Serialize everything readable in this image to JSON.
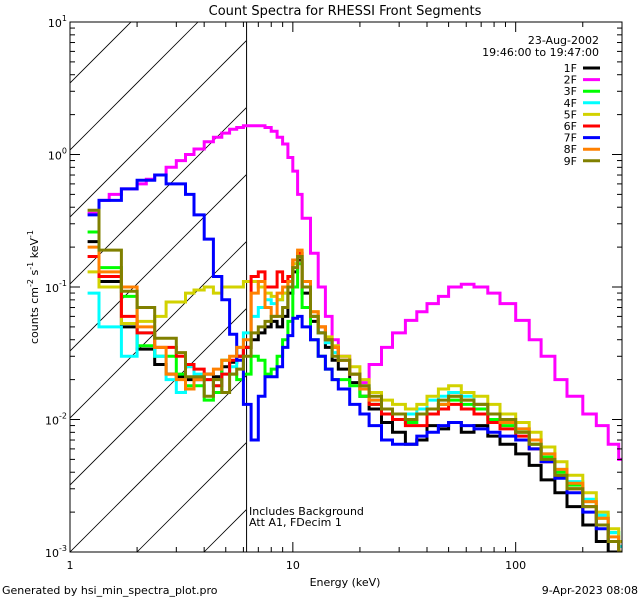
{
  "chart_data": {
    "type": "line",
    "title": "Count Spectra for RHESSI Front Segments",
    "xlabel": "Energy (keV)",
    "ylabel": {
      "base": "counts cm",
      "e1": "-2",
      "mid1": " s",
      "e2": "-1",
      "mid2": " keV",
      "e3": "-1"
    },
    "xscale": "log",
    "yscale": "log",
    "xlim": [
      1,
      300
    ],
    "ylim": [
      0.001,
      10
    ],
    "xticks": [
      {
        "value": 1,
        "label": "1"
      },
      {
        "value": 10,
        "label": "10"
      },
      {
        "value": 100,
        "label": "100"
      }
    ],
    "yticks": [
      {
        "value": 0.001,
        "base": "10",
        "exp": "-3"
      },
      {
        "value": 0.01,
        "base": "10",
        "exp": "-2"
      },
      {
        "value": 0.1,
        "base": "10",
        "exp": "-1"
      },
      {
        "value": 1,
        "base": "10",
        "exp": "0"
      },
      {
        "value": 10,
        "base": "10",
        "exp": "1"
      }
    ],
    "date": "23-Aug-2002",
    "time_range": "19:46:00 to 19:47:00",
    "legend_position": "top-right",
    "hatched_below_keV": 6.2,
    "annotations": [
      "Includes Background",
      "Att A1, FDecim 1"
    ],
    "x": [
      1.2,
      1.35,
      1.5,
      1.7,
      1.85,
      2.0,
      2.2,
      2.4,
      2.7,
      3.0,
      3.3,
      3.6,
      4.0,
      4.4,
      4.8,
      5.2,
      5.6,
      6.0,
      6.5,
      7.0,
      7.5,
      8.0,
      8.5,
      9.0,
      9.5,
      10.0,
      10.5,
      11.0,
      12,
      13,
      14,
      15,
      16,
      18,
      20,
      22,
      25,
      28,
      32,
      36,
      40,
      45,
      50,
      57,
      65,
      75,
      85,
      100,
      115,
      130,
      150,
      170,
      200,
      230,
      260,
      290
    ],
    "series": [
      {
        "name": "1F",
        "color": "#000000",
        "values": [
          0.22,
          0.11,
          0.11,
          0.05,
          0.05,
          0.034,
          0.034,
          0.026,
          0.022,
          0.021,
          0.02,
          0.02,
          0.022,
          0.021,
          0.025,
          0.027,
          0.03,
          0.035,
          0.04,
          0.045,
          0.05,
          0.055,
          0.05,
          0.06,
          0.09,
          0.13,
          0.16,
          0.09,
          0.055,
          0.045,
          0.035,
          0.028,
          0.024,
          0.019,
          0.015,
          0.012,
          0.0095,
          0.008,
          0.0065,
          0.007,
          0.009,
          0.0085,
          0.0095,
          0.008,
          0.009,
          0.0075,
          0.0065,
          0.0055,
          0.0045,
          0.0035,
          0.0028,
          0.0022,
          0.0016,
          0.0012,
          0.001,
          0.001
        ]
      },
      {
        "name": "2F",
        "color": "#ff00ff",
        "values": [
          0.36,
          0.45,
          0.5,
          0.55,
          0.55,
          0.6,
          0.65,
          0.7,
          0.8,
          0.9,
          1.0,
          1.1,
          1.25,
          1.35,
          1.45,
          1.55,
          1.6,
          1.65,
          1.65,
          1.65,
          1.6,
          1.5,
          1.35,
          1.2,
          0.95,
          0.75,
          0.5,
          0.33,
          0.18,
          0.1,
          0.06,
          0.04,
          0.03,
          0.022,
          0.019,
          0.026,
          0.035,
          0.045,
          0.056,
          0.065,
          0.075,
          0.085,
          0.1,
          0.105,
          0.1,
          0.09,
          0.075,
          0.056,
          0.04,
          0.03,
          0.02,
          0.015,
          0.011,
          0.009,
          0.0065,
          0.005
        ]
      },
      {
        "name": "3F",
        "color": "#00ff00",
        "values": [
          0.26,
          0.14,
          0.14,
          0.085,
          0.085,
          0.036,
          0.036,
          0.03,
          0.03,
          0.022,
          0.018,
          0.018,
          0.014,
          0.016,
          0.028,
          0.022,
          0.02,
          0.022,
          0.03,
          0.028,
          0.022,
          0.024,
          0.03,
          0.04,
          0.055,
          0.1,
          0.15,
          0.07,
          0.04,
          0.03,
          0.024,
          0.02,
          0.02,
          0.018,
          0.015,
          0.013,
          0.011,
          0.01,
          0.0095,
          0.011,
          0.012,
          0.013,
          0.014,
          0.013,
          0.012,
          0.01,
          0.009,
          0.008,
          0.0065,
          0.0052,
          0.004,
          0.0032,
          0.0024,
          0.0018,
          0.0014,
          0.0011
        ]
      },
      {
        "name": "4F",
        "color": "#00ffff",
        "values": [
          0.09,
          0.05,
          0.05,
          0.03,
          0.03,
          0.045,
          0.045,
          0.03,
          0.02,
          0.016,
          0.025,
          0.022,
          0.02,
          0.018,
          0.022,
          0.025,
          0.035,
          0.045,
          0.06,
          0.07,
          0.08,
          0.075,
          0.08,
          0.09,
          0.1,
          0.15,
          0.17,
          0.1,
          0.06,
          0.045,
          0.038,
          0.032,
          0.028,
          0.022,
          0.018,
          0.014,
          0.011,
          0.011,
          0.011,
          0.012,
          0.014,
          0.015,
          0.016,
          0.015,
          0.013,
          0.011,
          0.0095,
          0.0085,
          0.007,
          0.0055,
          0.0042,
          0.0034,
          0.0025,
          0.0019,
          0.0014,
          0.0011
        ]
      },
      {
        "name": "5F",
        "color": "#d2d200",
        "values": [
          0.13,
          0.1,
          0.1,
          0.053,
          0.053,
          0.055,
          0.055,
          0.06,
          0.077,
          0.077,
          0.09,
          0.095,
          0.1,
          0.09,
          0.1,
          0.1,
          0.1,
          0.11,
          0.11,
          0.1,
          0.09,
          0.085,
          0.08,
          0.09,
          0.12,
          0.15,
          0.18,
          0.11,
          0.065,
          0.05,
          0.042,
          0.036,
          0.03,
          0.025,
          0.02,
          0.016,
          0.014,
          0.013,
          0.012,
          0.013,
          0.015,
          0.017,
          0.018,
          0.016,
          0.015,
          0.013,
          0.011,
          0.0095,
          0.008,
          0.0062,
          0.0048,
          0.0038,
          0.0028,
          0.002,
          0.0015,
          0.0012
        ]
      },
      {
        "name": "6F",
        "color": "#ff0000",
        "values": [
          0.17,
          0.12,
          0.12,
          0.06,
          0.06,
          0.045,
          0.045,
          0.035,
          0.035,
          0.03,
          0.026,
          0.024,
          0.02,
          0.018,
          0.022,
          0.028,
          0.03,
          0.035,
          0.12,
          0.13,
          0.1,
          0.1,
          0.13,
          0.11,
          0.12,
          0.16,
          0.18,
          0.1,
          0.06,
          0.05,
          0.04,
          0.035,
          0.028,
          0.022,
          0.017,
          0.013,
          0.011,
          0.01,
          0.009,
          0.009,
          0.011,
          0.012,
          0.013,
          0.012,
          0.011,
          0.0095,
          0.0085,
          0.0075,
          0.006,
          0.0048,
          0.0037,
          0.003,
          0.0022,
          0.0016,
          0.0012,
          0.001
        ]
      },
      {
        "name": "7F",
        "color": "#0000ff",
        "values": [
          0.35,
          0.45,
          0.45,
          0.55,
          0.55,
          0.64,
          0.64,
          0.7,
          0.6,
          0.6,
          0.5,
          0.35,
          0.23,
          0.12,
          0.08,
          0.044,
          0.028,
          0.013,
          0.007,
          0.015,
          0.021,
          0.021,
          0.025,
          0.035,
          0.043,
          0.058,
          0.06,
          0.05,
          0.04,
          0.03,
          0.024,
          0.02,
          0.017,
          0.013,
          0.011,
          0.009,
          0.007,
          0.0065,
          0.0065,
          0.0075,
          0.008,
          0.009,
          0.0095,
          0.009,
          0.0085,
          0.008,
          0.0075,
          0.007,
          0.006,
          0.0048,
          0.0036,
          0.0028,
          0.002,
          0.0015,
          0.0012,
          0.001
        ]
      },
      {
        "name": "8F",
        "color": "#ff8000",
        "values": [
          0.2,
          0.13,
          0.13,
          0.1,
          0.1,
          0.05,
          0.05,
          0.035,
          0.022,
          0.02,
          0.017,
          0.02,
          0.022,
          0.024,
          0.028,
          0.03,
          0.035,
          0.04,
          0.09,
          0.11,
          0.07,
          0.06,
          0.09,
          0.1,
          0.11,
          0.16,
          0.19,
          0.11,
          0.065,
          0.05,
          0.04,
          0.035,
          0.028,
          0.022,
          0.017,
          0.014,
          0.012,
          0.011,
          0.01,
          0.011,
          0.012,
          0.013,
          0.015,
          0.014,
          0.013,
          0.011,
          0.0095,
          0.0085,
          0.007,
          0.0055,
          0.0042,
          0.0033,
          0.0024,
          0.0018,
          0.0013,
          0.001
        ]
      },
      {
        "name": "9F",
        "color": "#808000",
        "values": [
          0.38,
          0.19,
          0.19,
          0.093,
          0.093,
          0.07,
          0.07,
          0.041,
          0.041,
          0.032,
          0.021,
          0.021,
          0.015,
          0.02,
          0.016,
          0.022,
          0.024,
          0.03,
          0.045,
          0.05,
          0.055,
          0.06,
          0.06,
          0.07,
          0.1,
          0.14,
          0.17,
          0.1,
          0.06,
          0.045,
          0.04,
          0.03,
          0.028,
          0.022,
          0.018,
          0.015,
          0.012,
          0.011,
          0.01,
          0.011,
          0.012,
          0.014,
          0.015,
          0.014,
          0.013,
          0.011,
          0.01,
          0.008,
          0.0065,
          0.005,
          0.0038,
          0.003,
          0.0022,
          0.0016,
          0.0012,
          0.001
        ]
      }
    ]
  },
  "footer": {
    "generator": "Generated by hsi_min_spectra_plot.pro",
    "timestamp": "9-Apr-2023 08:08"
  }
}
